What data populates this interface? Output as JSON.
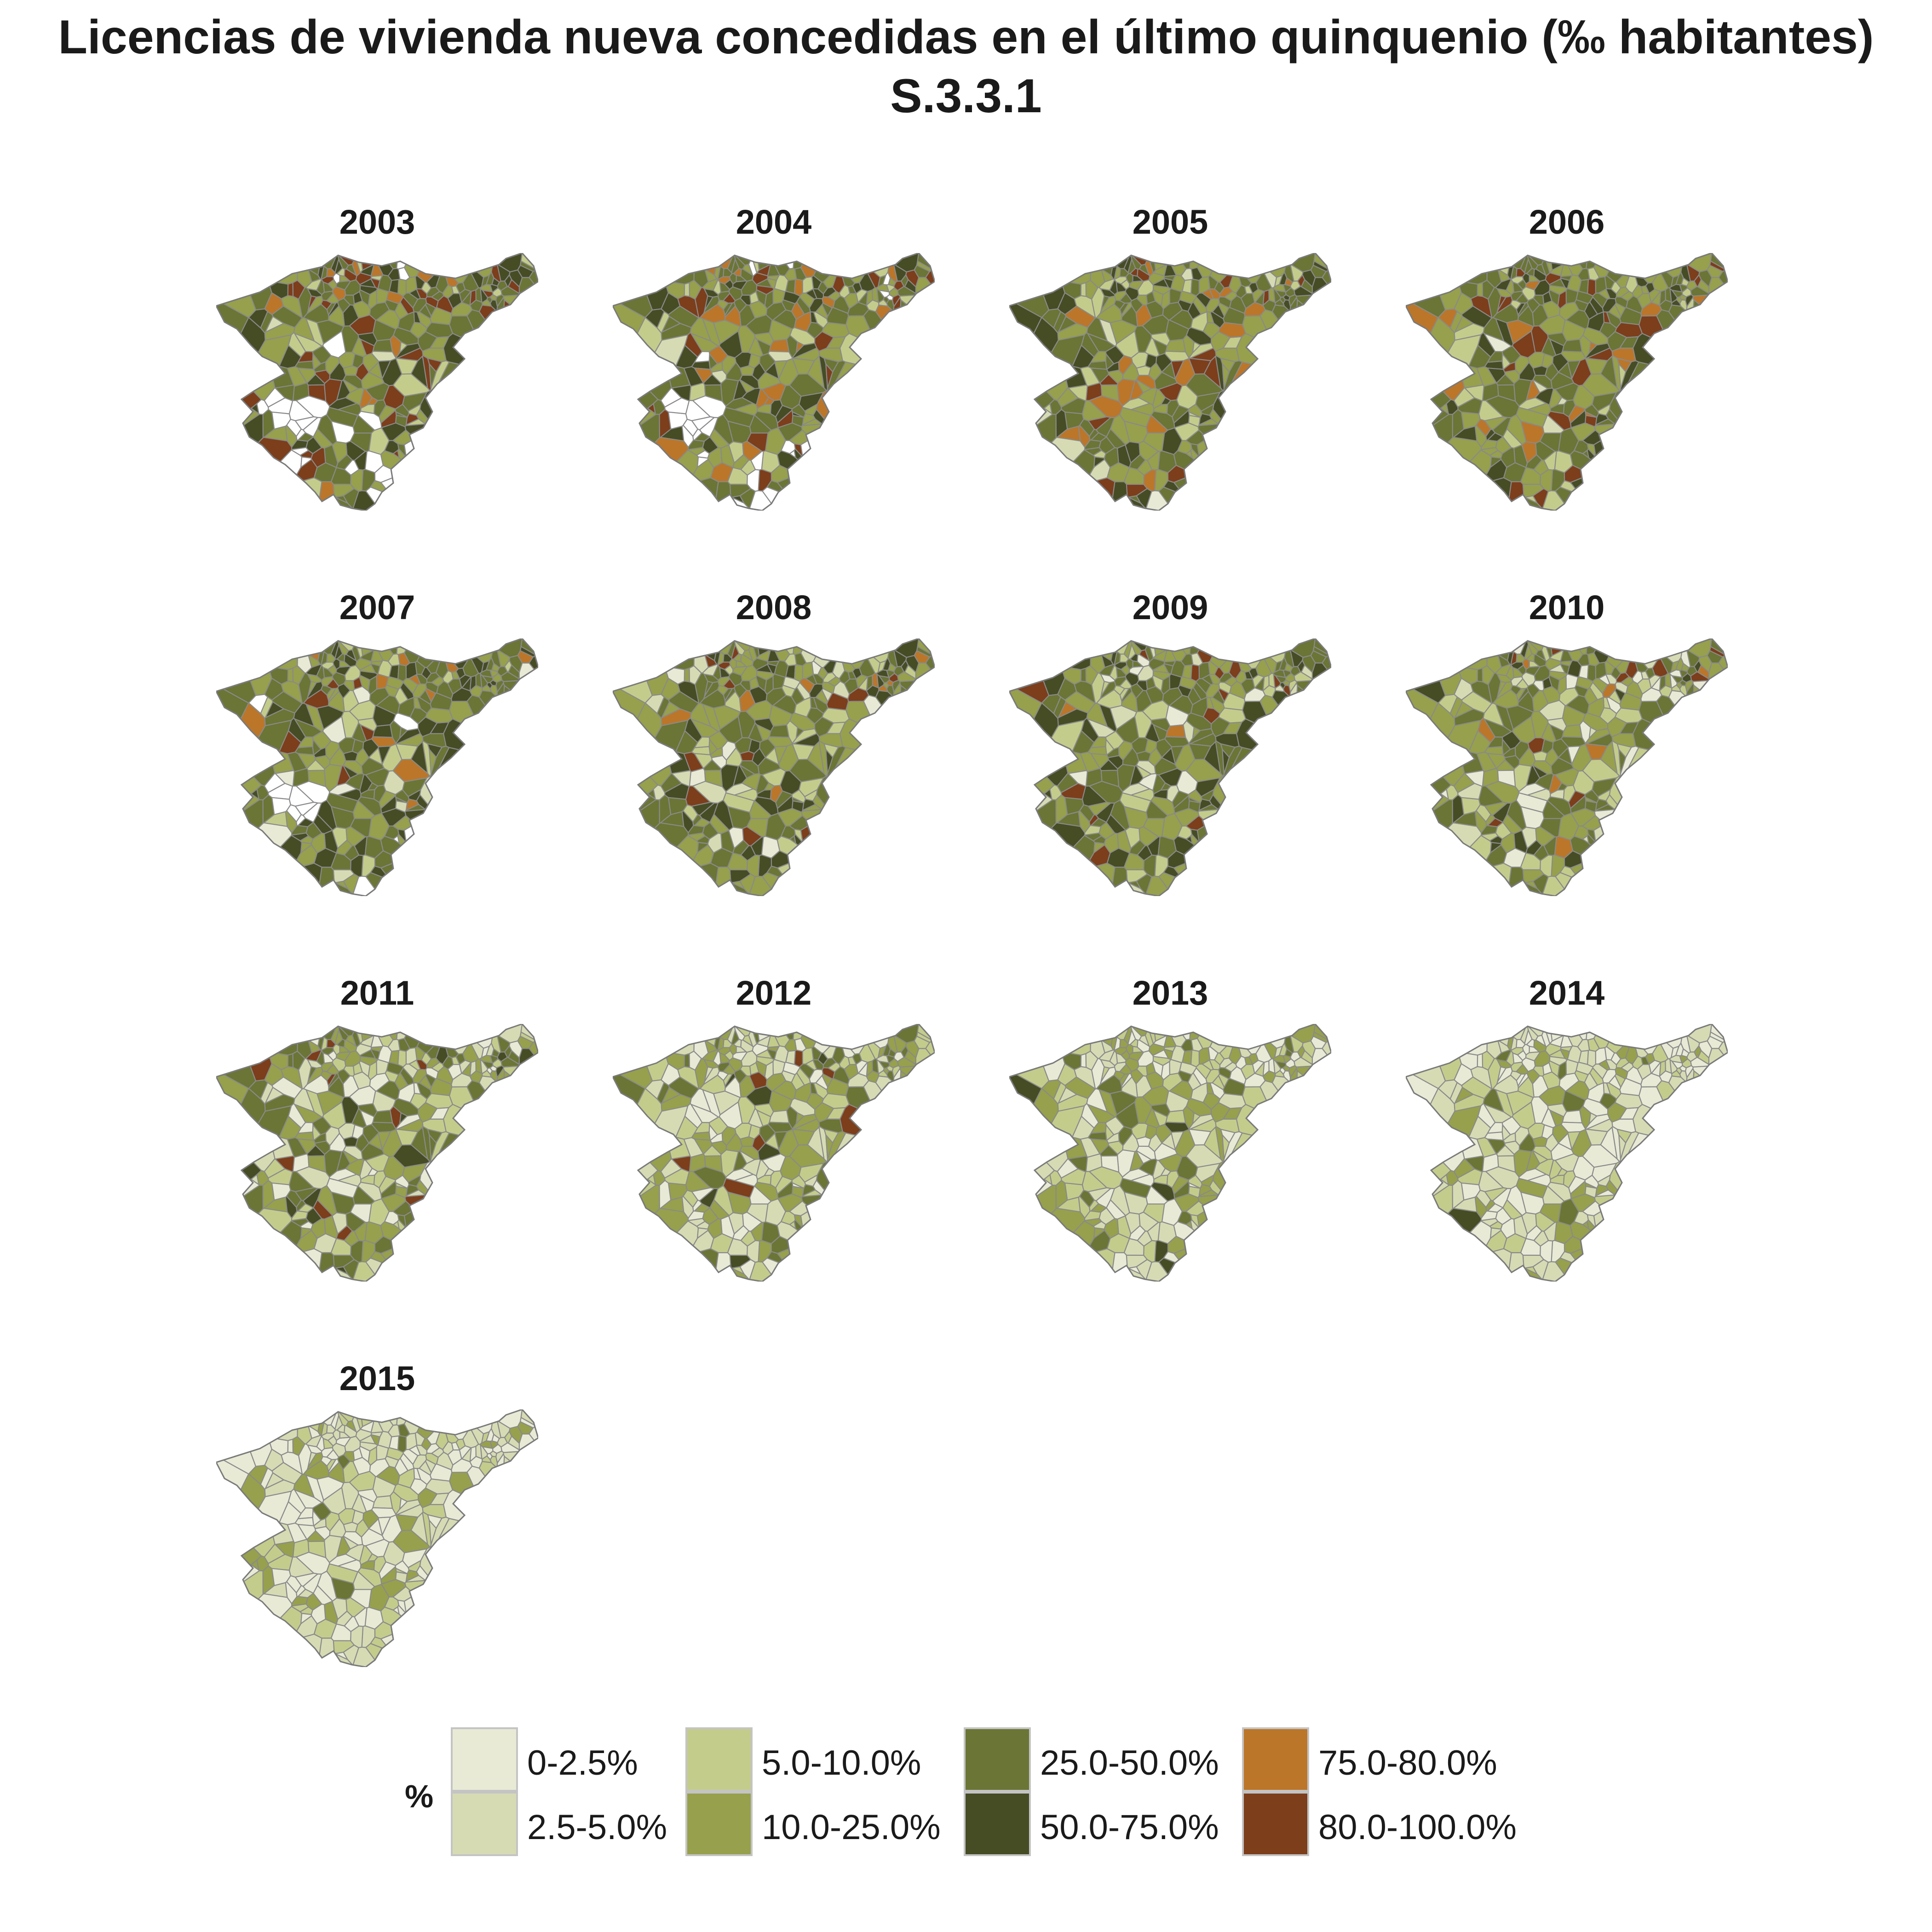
{
  "title": {
    "line1": "Licencias de vivienda nueva concedidas en el último quinquenio (‰ habitantes)",
    "line2": "S.3.3.1"
  },
  "legend": {
    "title": "%",
    "items": [
      {
        "label": "0-2.5%",
        "color": "#e8ead6"
      },
      {
        "label": "2.5-5.0%",
        "color": "#d6dbb4"
      },
      {
        "label": "5.0-10.0%",
        "color": "#c4cc8c"
      },
      {
        "label": "10.0-25.0%",
        "color": "#97a04c"
      },
      {
        "label": "25.0-50.0%",
        "color": "#6b7535"
      },
      {
        "label": "50.0-75.0%",
        "color": "#464c24"
      },
      {
        "label": "75.0-80.0%",
        "color": "#bb762a"
      },
      {
        "label": "80.0-100.0%",
        "color": "#7c3e1b"
      }
    ]
  },
  "panels": [
    {
      "year": "2003",
      "dist": [
        0.0,
        0.01,
        0.06,
        0.18,
        0.3,
        0.17,
        0.06,
        0.12
      ],
      "nodata": 0.14
    },
    {
      "year": "2004",
      "dist": [
        0.0,
        0.01,
        0.07,
        0.2,
        0.34,
        0.17,
        0.06,
        0.08
      ],
      "nodata": 0.07
    },
    {
      "year": "2005",
      "dist": [
        0.01,
        0.02,
        0.07,
        0.22,
        0.36,
        0.17,
        0.07,
        0.08
      ],
      "nodata": 0.0
    },
    {
      "year": "2006",
      "dist": [
        0.01,
        0.02,
        0.08,
        0.24,
        0.36,
        0.16,
        0.06,
        0.07
      ],
      "nodata": 0.0
    },
    {
      "year": "2007",
      "dist": [
        0.02,
        0.02,
        0.08,
        0.24,
        0.38,
        0.18,
        0.03,
        0.03
      ],
      "nodata": 0.02
    },
    {
      "year": "2008",
      "dist": [
        0.02,
        0.03,
        0.1,
        0.28,
        0.34,
        0.16,
        0.02,
        0.05
      ],
      "nodata": 0.0
    },
    {
      "year": "2009",
      "dist": [
        0.03,
        0.04,
        0.12,
        0.28,
        0.34,
        0.14,
        0.01,
        0.04
      ],
      "nodata": 0.0
    },
    {
      "year": "2010",
      "dist": [
        0.08,
        0.08,
        0.14,
        0.3,
        0.26,
        0.08,
        0.02,
        0.04
      ],
      "nodata": 0.0
    },
    {
      "year": "2011",
      "dist": [
        0.1,
        0.12,
        0.18,
        0.28,
        0.22,
        0.07,
        0.0,
        0.03
      ],
      "nodata": 0.0
    },
    {
      "year": "2012",
      "dist": [
        0.14,
        0.18,
        0.22,
        0.26,
        0.14,
        0.04,
        0.0,
        0.02
      ],
      "nodata": 0.0
    },
    {
      "year": "2013",
      "dist": [
        0.24,
        0.24,
        0.24,
        0.2,
        0.06,
        0.02,
        0.0,
        0.0
      ],
      "nodata": 0.0
    },
    {
      "year": "2014",
      "dist": [
        0.3,
        0.26,
        0.24,
        0.16,
        0.03,
        0.01,
        0.0,
        0.0
      ],
      "nodata": 0.0
    },
    {
      "year": "2015",
      "dist": [
        0.38,
        0.3,
        0.2,
        0.11,
        0.01,
        0.0,
        0.0,
        0.0
      ],
      "nodata": 0.0
    }
  ]
}
